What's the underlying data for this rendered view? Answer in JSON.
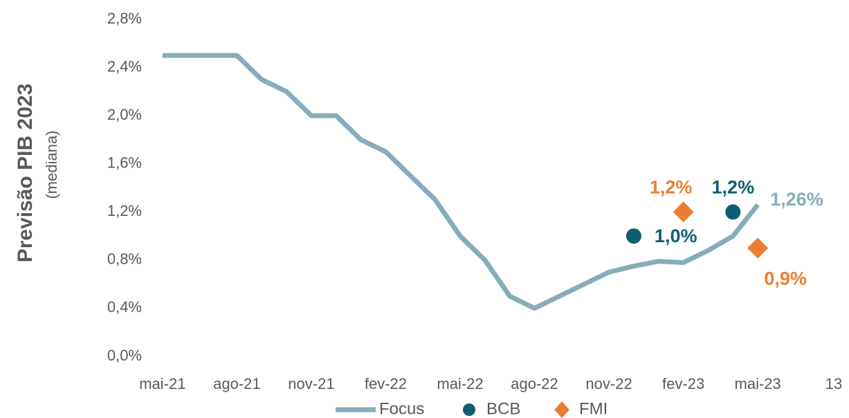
{
  "chart_data": {
    "type": "line",
    "ylabel": "Previsão PIB 2023",
    "ylabel_note": "(mediana)",
    "page_number": "13",
    "xlim": [
      "2021-04",
      "2023-06"
    ],
    "xticks": [
      {
        "value": "2021-05",
        "label": "mai-21"
      },
      {
        "value": "2021-08",
        "label": "ago-21"
      },
      {
        "value": "2021-11",
        "label": "nov-21"
      },
      {
        "value": "2022-02",
        "label": "fev-22"
      },
      {
        "value": "2022-05",
        "label": "mai-22"
      },
      {
        "value": "2022-08",
        "label": "ago-22"
      },
      {
        "value": "2022-11",
        "label": "nov-22"
      },
      {
        "value": "2023-02",
        "label": "fev-23"
      },
      {
        "value": "2023-05",
        "label": "mai-23"
      }
    ],
    "ylim": [
      0,
      2.8
    ],
    "yticks": [
      {
        "value": 0,
        "label": "0,0%"
      },
      {
        "value": 0.4,
        "label": "0,4%"
      },
      {
        "value": 0.8,
        "label": "0,8%"
      },
      {
        "value": 1.2,
        "label": "1,2%"
      },
      {
        "value": 1.6,
        "label": "1,6%"
      },
      {
        "value": 2.0,
        "label": "2,0%"
      },
      {
        "value": 2.4,
        "label": "2,4%"
      },
      {
        "value": 2.8,
        "label": "2,8%"
      }
    ],
    "series": [
      {
        "name": "Focus",
        "color": "#86adb9",
        "marker": "line",
        "x": [
          "2021-05",
          "2021-06",
          "2021-07",
          "2021-08",
          "2021-09",
          "2021-10",
          "2021-11",
          "2021-12",
          "2022-01",
          "2022-02",
          "2022-03",
          "2022-04",
          "2022-05",
          "2022-06",
          "2022-07",
          "2022-08",
          "2022-09",
          "2022-10",
          "2022-11",
          "2022-12",
          "2023-01",
          "2023-02",
          "2023-03",
          "2023-04",
          "2023-05"
        ],
        "values": [
          2.5,
          2.5,
          2.5,
          2.5,
          2.3,
          2.2,
          2.0,
          2.0,
          1.8,
          1.7,
          1.5,
          1.3,
          1.0,
          0.8,
          0.5,
          0.4,
          0.5,
          0.6,
          0.7,
          0.75,
          0.79,
          0.78,
          0.88,
          1.0,
          1.26
        ],
        "value_labels": [
          null,
          null,
          null,
          null,
          null,
          null,
          null,
          null,
          null,
          null,
          null,
          null,
          null,
          null,
          null,
          null,
          null,
          null,
          null,
          null,
          null,
          null,
          null,
          null,
          "1,26%"
        ]
      },
      {
        "name": "BCB",
        "color": "#0e5e6f",
        "marker": "circle",
        "x": [
          "2022-12",
          "2023-04"
        ],
        "values": [
          1.0,
          1.2
        ],
        "value_labels": [
          "1,0%",
          "1,2%"
        ]
      },
      {
        "name": "FMI",
        "color": "#ed7d31",
        "marker": "diamond",
        "x": [
          "2023-02",
          "2023-05"
        ],
        "values": [
          1.2,
          0.9
        ],
        "value_labels": [
          "1,2%",
          "0,9%"
        ]
      }
    ]
  }
}
